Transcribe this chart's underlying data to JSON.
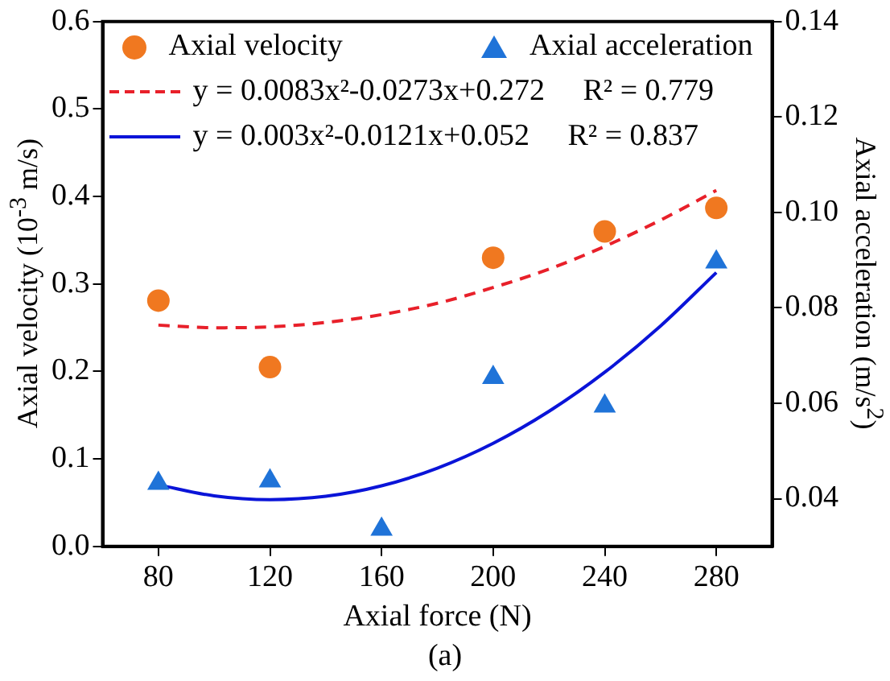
{
  "chart_data": {
    "type": "scatter",
    "xlabel": "Axial force (N)",
    "ylabel": "Axial velocity (10$^{-3}$ m/s)",
    "y2label": "Axial acceleration (m/s$^{2}$)",
    "annotations": [
      "(a)"
    ],
    "x": [
      80,
      120,
      160,
      200,
      240,
      280
    ],
    "series": [
      {
        "name": "Axial velocity",
        "color": "#f07820",
        "marker": "circle",
        "values": [
          0.281,
          0.205,
          null,
          0.33,
          0.36,
          0.387
        ]
      },
      {
        "name": "Axial acceleration",
        "color": "#1f73d8",
        "marker": "triangle",
        "axis": "y2",
        "values": [
          0.0432,
          0.0437,
          0.0336,
          0.0654,
          0.0594,
          0.0896
        ]
      },
      {
        "name": "y = 0.0083x²-0.0273x+0.272     R² = 0.779",
        "type": "line",
        "color": "#e8202a",
        "marker": "none",
        "line_style": "dashed",
        "x": [
          80,
          100,
          120,
          140,
          160,
          180,
          200,
          220,
          240,
          260,
          280
        ],
        "values": [
          0.253,
          0.25,
          0.251,
          0.256,
          0.265,
          0.278,
          0.296,
          0.317,
          0.343,
          0.373,
          0.407
        ]
      },
      {
        "name": "y = 0.003x²-0.0121x+0.052     R² = 0.837",
        "type": "line",
        "color": "#0a14d8",
        "marker": "none",
        "line_style": "solid",
        "axis": "y2",
        "x": [
          80,
          100,
          120,
          140,
          160,
          180,
          200,
          220,
          240,
          260,
          280
        ],
        "values": [
          0.0429,
          0.0406,
          0.0398,
          0.0405,
          0.0427,
          0.0464,
          0.0516,
          0.0583,
          0.0665,
          0.0762,
          0.0874
        ]
      }
    ],
    "xlim": [
      60,
      300
    ],
    "xticks": [
      80,
      120,
      160,
      200,
      240,
      280
    ],
    "ylim": [
      0,
      0.6
    ],
    "yticks": [
      {
        "value": 0,
        "label": "0.0"
      },
      0.1,
      0.2,
      0.3,
      0.4,
      0.5,
      0.6
    ],
    "y2lim": [
      0.03,
      0.14
    ],
    "y2ticks": [
      0.04,
      0.06,
      0.08,
      {
        "value": 0.1,
        "label": "0.10"
      },
      0.12,
      0.14
    ],
    "grid": false,
    "legend": "top"
  }
}
